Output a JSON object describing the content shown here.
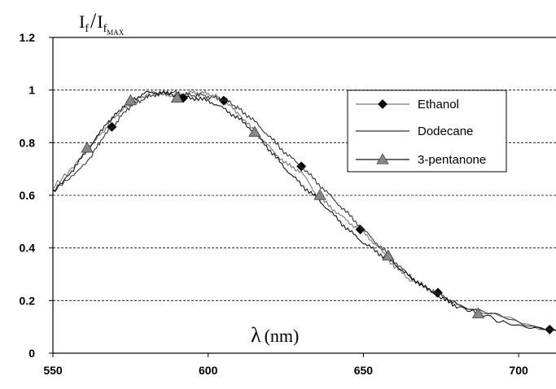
{
  "chart_data": {
    "type": "line",
    "title": "",
    "ylabel": {
      "main": "I",
      "sub1": "f",
      "slash": "/",
      "main2": "I",
      "sub2": "f",
      "sub3": "MAX"
    },
    "xlabel": {
      "symbol": "λ",
      "unit": "(nm)"
    },
    "xlim": [
      550,
      722
    ],
    "ylim": [
      0,
      1.2
    ],
    "xticks": [
      550,
      600,
      650,
      700
    ],
    "xtick_labels": [
      "550",
      "600",
      "650",
      "700"
    ],
    "yticks": [
      0,
      0.2,
      0.4,
      0.6,
      0.8,
      1,
      1.2
    ],
    "ytick_labels": [
      "0",
      "0.2",
      "0.4",
      "0.6",
      "0.8",
      "1",
      "1.2"
    ],
    "grid": "horizontal-dashed",
    "legend_position": "right",
    "series": [
      {
        "name": "Ethanol",
        "color": "#777777",
        "marker": "diamond",
        "marker_color": "#000000",
        "x": [
          550,
          556,
          562,
          566,
          570,
          574,
          578,
          582,
          586,
          590,
          594,
          598,
          602,
          606,
          610,
          615,
          620,
          625,
          630,
          635,
          640,
          645,
          650,
          655,
          660,
          665,
          670,
          675,
          680,
          690,
          700,
          710,
          722
        ],
        "y": [
          0.63,
          0.7,
          0.79,
          0.84,
          0.9,
          0.94,
          0.97,
          0.99,
          0.98,
          0.98,
          0.99,
          0.99,
          0.98,
          0.95,
          0.91,
          0.84,
          0.78,
          0.72,
          0.69,
          0.6,
          0.55,
          0.5,
          0.46,
          0.4,
          0.33,
          0.28,
          0.25,
          0.22,
          0.19,
          0.15,
          0.12,
          0.09,
          0.05
        ],
        "markers_x": [
          569,
          592,
          605,
          630,
          649,
          674,
          710
        ],
        "markers_y": [
          0.86,
          0.97,
          0.96,
          0.71,
          0.47,
          0.23,
          0.09
        ]
      },
      {
        "name": "Dodecane",
        "color": "#333333",
        "marker": "none",
        "x": [
          550,
          556,
          562,
          566,
          570,
          574,
          578,
          582,
          586,
          590,
          594,
          598,
          602,
          606,
          610,
          615,
          620,
          625,
          630,
          635,
          640,
          645,
          650,
          655,
          660,
          665,
          670,
          675,
          680,
          690,
          700,
          710,
          722
        ],
        "y": [
          0.62,
          0.67,
          0.74,
          0.82,
          0.87,
          0.93,
          0.96,
          0.98,
          0.99,
          0.99,
          0.98,
          0.98,
          0.97,
          0.96,
          0.93,
          0.88,
          0.82,
          0.76,
          0.71,
          0.65,
          0.59,
          0.53,
          0.47,
          0.41,
          0.35,
          0.29,
          0.25,
          0.22,
          0.19,
          0.15,
          0.12,
          0.09,
          0.05
        ]
      },
      {
        "name": "3-pentanone",
        "color": "#111111",
        "marker": "triangle",
        "marker_color": "#888888",
        "x": [
          550,
          556,
          561,
          566,
          570,
          575,
          580,
          585,
          590,
          595,
          600,
          605,
          610,
          615,
          620,
          625,
          630,
          635,
          640,
          645,
          650,
          655,
          660,
          665,
          670,
          675,
          680,
          687,
          695,
          705,
          715,
          722
        ],
        "y": [
          0.61,
          0.69,
          0.77,
          0.85,
          0.91,
          0.96,
          0.99,
          0.99,
          0.98,
          0.97,
          0.96,
          0.93,
          0.89,
          0.84,
          0.77,
          0.7,
          0.64,
          0.59,
          0.53,
          0.47,
          0.42,
          0.38,
          0.34,
          0.29,
          0.25,
          0.21,
          0.18,
          0.15,
          0.12,
          0.1,
          0.07,
          0.06
        ],
        "markers_x": [
          561,
          575,
          590,
          615,
          636,
          658,
          687
        ],
        "markers_y": [
          0.78,
          0.96,
          0.97,
          0.84,
          0.6,
          0.37,
          0.15
        ]
      }
    ]
  }
}
